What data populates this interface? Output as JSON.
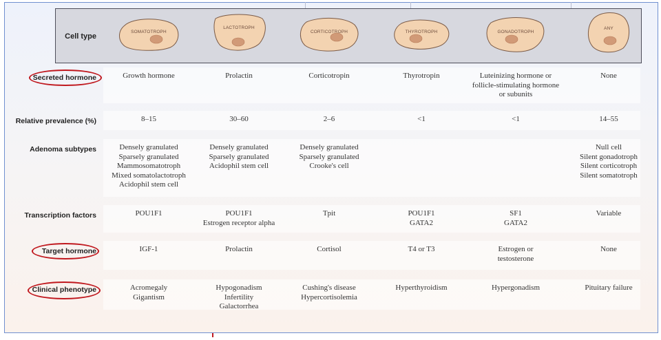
{
  "header": {
    "cell_type_label": "Cell type",
    "cell_types": [
      "SOMATOTROPH",
      "LACTOTROPH",
      "CORTICOTROPH",
      "THYROTROPH",
      "GONADOTROPH",
      "ANY"
    ]
  },
  "rows": [
    {
      "label": "Secreted hormone",
      "circled": true,
      "cells": [
        [
          "Growth hormone"
        ],
        [
          "Prolactin"
        ],
        [
          "Corticotropin"
        ],
        [
          "Thyrotropin"
        ],
        [
          "Luteinizing hormone or",
          "follicle-stimulating hormone",
          "or subunits"
        ],
        [
          "None"
        ]
      ]
    },
    {
      "label": "Relative prevalence (%)",
      "circled": false,
      "cells": [
        [
          "8–15"
        ],
        [
          "30–60"
        ],
        [
          "2–6"
        ],
        [
          "<1"
        ],
        [
          "<1"
        ],
        [
          "14–55"
        ]
      ]
    },
    {
      "label": "Adenoma subtypes",
      "circled": false,
      "cells": [
        [
          "Densely granulated",
          "Sparsely granulated",
          "Mammosomatotroph",
          "Mixed somatolactotroph",
          "Acidophil stem cell"
        ],
        [
          "Densely granulated",
          "Sparsely granulated",
          "Acidophil stem cell"
        ],
        [
          "Densely granulated",
          "Sparsely granulated",
          "Crooke's cell"
        ],
        [],
        [],
        [
          "Null cell",
          "Silent gonadotroph",
          "Silent corticotroph",
          "Silent somatotroph"
        ]
      ]
    },
    {
      "label": "Transcription factors",
      "circled": false,
      "cells": [
        [
          "POU1F1"
        ],
        [
          "POU1F1",
          "Estrogen receptor alpha"
        ],
        [
          "Tpit"
        ],
        [
          "POU1F1",
          "GATA2"
        ],
        [
          "SF1",
          "GATA2"
        ],
        [
          "Variable"
        ]
      ]
    },
    {
      "label": "Target hormone",
      "circled": true,
      "cells": [
        [
          "IGF-1"
        ],
        [
          "Prolactin"
        ],
        [
          "Cortisol"
        ],
        [
          "T4 or T3"
        ],
        [
          "Estrogen or",
          "testosterone"
        ],
        [
          "None"
        ]
      ]
    },
    {
      "label": "Clinical phenotype",
      "circled": true,
      "cells": [
        [
          "Acromegaly",
          "Gigantism"
        ],
        [
          "Hypogonadism",
          "Infertility",
          "Galactorrhea"
        ],
        [
          "Cushing's disease",
          "Hypercortisolemia"
        ],
        [
          "Hyperthyroidism"
        ],
        [
          "Hypergonadism"
        ],
        [
          "Pituitary failure"
        ]
      ]
    }
  ],
  "colors": {
    "annotation_red": "#c0181e",
    "cell_fill": "#f3d3b1",
    "cell_stroke": "#7a5a46",
    "nucleus": "#d19a77",
    "frame_blue": "#6f8fd0"
  }
}
